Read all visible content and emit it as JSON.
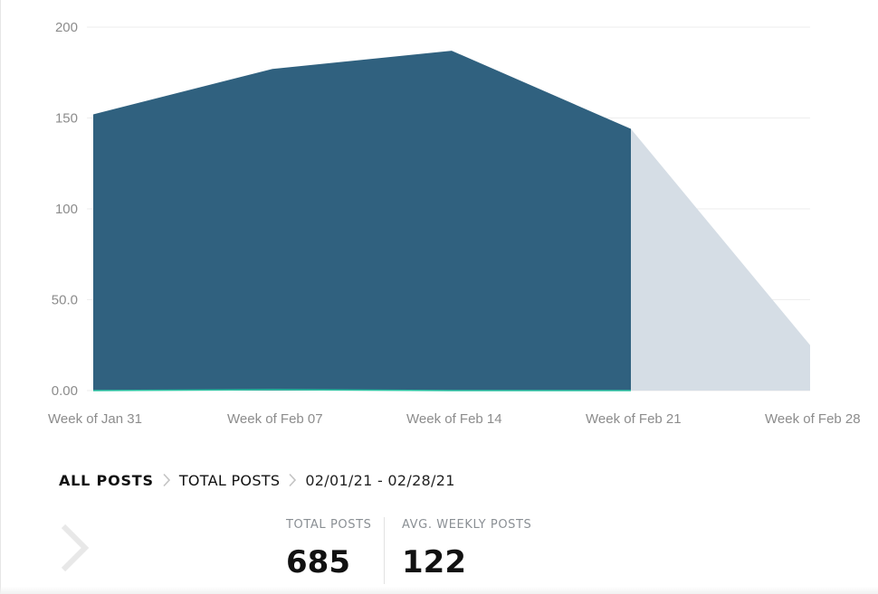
{
  "chart_data": {
    "type": "area",
    "x": [
      "Week of Jan 31",
      "Week of Feb 07",
      "Week of Feb 14",
      "Week of Feb 21",
      "Week of Feb 28"
    ],
    "y_ticks": [
      "0.00",
      "50.0",
      "100",
      "150",
      "200"
    ],
    "ylim": [
      0,
      200
    ],
    "grid": true,
    "series": [
      {
        "values": [
          152,
          177,
          187,
          144,
          null
        ],
        "color": "#30617f"
      },
      {
        "values": [
          null,
          null,
          null,
          144,
          25
        ],
        "color": "#d5dde5"
      },
      {
        "values": [
          0,
          0.5,
          0,
          0,
          null
        ],
        "color": "#2bc4a2"
      }
    ]
  },
  "breadcrumb": {
    "items": [
      "ALL POSTS",
      "TOTAL POSTS"
    ],
    "range": "02/01/21 - 02/28/21"
  },
  "stats": [
    {
      "label": "TOTAL POSTS",
      "value": "685"
    },
    {
      "label": "AVG. WEEKLY POSTS",
      "value": "122"
    }
  ],
  "icons": {
    "breadcrumb_separator": "chevron-right-icon",
    "nav": "chevron-right-icon"
  }
}
